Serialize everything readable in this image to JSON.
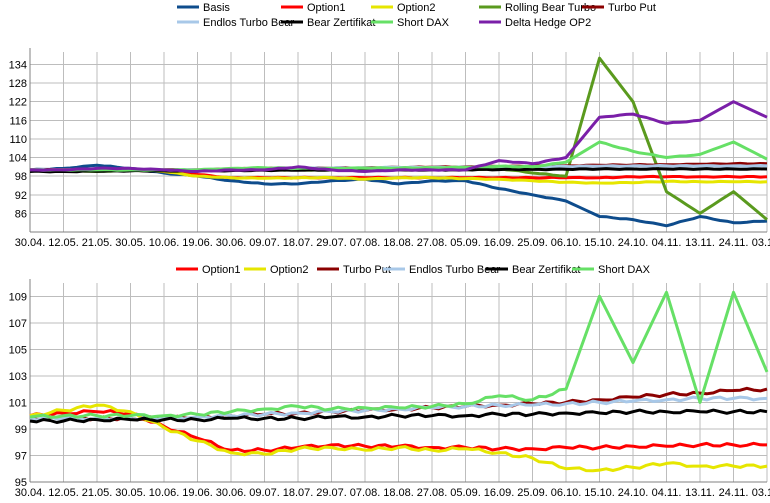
{
  "chart_data": [
    {
      "type": "line",
      "title": "",
      "xlabel": "",
      "ylabel": "",
      "ylim": [
        80,
        138
      ],
      "yticks": [
        86,
        92,
        98,
        104,
        110,
        116,
        122,
        128,
        134
      ],
      "categories": [
        "30.04.",
        "12.05.",
        "21.05.",
        "30.05.",
        "10.06.",
        "19.06.",
        "30.06.",
        "09.07.",
        "18.07.",
        "29.07.",
        "07.08.",
        "18.08.",
        "27.08.",
        "05.09.",
        "16.09.",
        "25.09.",
        "06.10.",
        "15.10.",
        "24.10.",
        "04.11.",
        "13.11.",
        "24.11.",
        "03.12."
      ],
      "grid": true,
      "legend": "top",
      "series": [
        {
          "name": "Basis",
          "color": "#0e4c8c",
          "values": [
            100,
            100.5,
            101.5,
            100.5,
            99,
            98,
            96.5,
            95.5,
            95.5,
            96.5,
            97,
            95.5,
            96.5,
            96.5,
            94,
            92,
            90,
            85,
            84,
            82,
            85,
            83,
            83.5
          ]
        },
        {
          "name": "Option1",
          "color": "#ff0000",
          "values": [
            100,
            100,
            100,
            100,
            99.5,
            98.5,
            97.5,
            97.5,
            97.5,
            97.5,
            97.5,
            97.5,
            97.5,
            97.5,
            97.5,
            97.5,
            97.5,
            97.5,
            97.8,
            97.8,
            97.8,
            97.8,
            97.8
          ]
        },
        {
          "name": "Option2",
          "color": "#e6e600",
          "values": [
            100,
            100,
            100.2,
            100,
            99.5,
            98,
            97.5,
            97.3,
            97.5,
            97.5,
            97,
            97.5,
            97.5,
            97.2,
            97,
            96.5,
            96,
            95.8,
            95.9,
            96.3,
            96.2,
            96.2,
            96.2
          ]
        },
        {
          "name": "Rolling Bear Turbo",
          "color": "#5a9a1e",
          "values": [
            100,
            100,
            99.5,
            100,
            100,
            100,
            100,
            100,
            100,
            100,
            100,
            100,
            100,
            100,
            100.5,
            99,
            98,
            136,
            122,
            93,
            86,
            93,
            84
          ]
        },
        {
          "name": "Turbo Put",
          "color": "#8b0000",
          "values": [
            100,
            100,
            100,
            100,
            100,
            100,
            100.3,
            100.5,
            100.5,
            100.6,
            100.7,
            100.8,
            100.9,
            101,
            101.1,
            101.2,
            101.3,
            101.5,
            101.6,
            101.7,
            101.8,
            102,
            102
          ]
        },
        {
          "name": "Endlos Turbo Bear",
          "color": "#a8c8e8",
          "values": [
            100,
            100,
            100,
            100,
            100,
            100,
            100.2,
            100.4,
            100.5,
            100.6,
            100.7,
            100.8,
            100.8,
            100.9,
            101,
            101,
            101.1,
            101.2,
            101.3,
            101.3,
            101.3,
            101.3,
            101.3
          ]
        },
        {
          "name": "Bear Zertifikat",
          "color": "#000000",
          "values": [
            99.5,
            99.5,
            99.6,
            99.7,
            99.7,
            99.7,
            99.8,
            99.9,
            99.9,
            100,
            100,
            100,
            100,
            100.1,
            100.1,
            100.2,
            100.2,
            100.3,
            100.3,
            100.3,
            100.3,
            100.3,
            100.3
          ]
        },
        {
          "name": "Short DAX",
          "color": "#66e066",
          "values": [
            100,
            100,
            100,
            100,
            100,
            100,
            100.5,
            100.7,
            100.5,
            100.5,
            100.6,
            100.6,
            100.7,
            100.8,
            101.2,
            101,
            102.5,
            109,
            106,
            104,
            105,
            109,
            103.5
          ]
        },
        {
          "name": "Delta Hedge OP2",
          "color": "#7a1fa8",
          "values": [
            100,
            100,
            100.5,
            100.5,
            100,
            99.5,
            100,
            100,
            101,
            100,
            99.5,
            100,
            100,
            100,
            103,
            102,
            104,
            117,
            118,
            115,
            116,
            122,
            117
          ]
        }
      ]
    },
    {
      "type": "line",
      "title": "",
      "xlabel": "",
      "ylabel": "",
      "ylim": [
        95,
        110
      ],
      "yticks": [
        95,
        97,
        99,
        101,
        103,
        105,
        107,
        109
      ],
      "categories": [
        "30.04.",
        "12.05.",
        "21.05.",
        "30.05.",
        "10.06.",
        "19.06.",
        "30.06.",
        "09.07.",
        "18.07.",
        "29.07.",
        "07.08.",
        "18.08.",
        "27.08.",
        "05.09.",
        "16.09.",
        "25.09.",
        "06.10.",
        "15.10.",
        "24.10.",
        "04.11.",
        "13.11.",
        "24.11.",
        "03.12."
      ],
      "grid": true,
      "legend": "top",
      "series": [
        {
          "name": "Option1",
          "color": "#ff0000",
          "values": [
            100,
            100.2,
            100.3,
            100.2,
            99.2,
            98.3,
            97.4,
            97.4,
            97.6,
            97.8,
            97.7,
            97.7,
            97.6,
            97.6,
            97.5,
            97.5,
            97.6,
            97.6,
            97.7,
            97.7,
            97.8,
            97.8,
            97.8
          ]
        },
        {
          "name": "Option2",
          "color": "#e6e600",
          "values": [
            100,
            100.4,
            100.8,
            100.3,
            99.1,
            98.1,
            97.2,
            97.1,
            97.5,
            97.6,
            97.4,
            97.6,
            97.4,
            97.5,
            97.2,
            96.8,
            96,
            95.9,
            96.1,
            96.4,
            96.2,
            96.2,
            96.2
          ]
        },
        {
          "name": "Turbo Put",
          "color": "#8b0000",
          "values": [
            99.8,
            99.8,
            99.8,
            99.8,
            99.8,
            99.9,
            100,
            100.1,
            100.2,
            100.3,
            100.4,
            100.5,
            100.6,
            100.7,
            100.8,
            100.9,
            101,
            101.2,
            101.4,
            101.6,
            101.7,
            101.9,
            102
          ]
        },
        {
          "name": "Endlos Turbo Bear",
          "color": "#a8c8e8",
          "values": [
            99.8,
            99.8,
            99.8,
            99.8,
            99.8,
            99.9,
            100,
            100.1,
            100.2,
            100.3,
            100.4,
            100.5,
            100.6,
            100.7,
            100.8,
            100.8,
            100.9,
            101,
            101.1,
            101.2,
            101.3,
            101.3,
            101.3
          ]
        },
        {
          "name": "Bear Zertifikat",
          "color": "#000000",
          "values": [
            99.6,
            99.6,
            99.7,
            99.7,
            99.7,
            99.7,
            99.8,
            99.8,
            99.8,
            99.9,
            99.9,
            100,
            100,
            100,
            100.1,
            100.1,
            100.2,
            100.2,
            100.3,
            100.3,
            100.3,
            100.3,
            100.3
          ]
        },
        {
          "name": "Short DAX",
          "color": "#66e066",
          "values": [
            99.9,
            100,
            100,
            100,
            100,
            100.1,
            100.3,
            100.5,
            100.7,
            100.5,
            100.6,
            100.6,
            100.7,
            100.9,
            101.5,
            101.2,
            102,
            109,
            104,
            109.3,
            101,
            109.3,
            103.3
          ]
        }
      ]
    }
  ]
}
